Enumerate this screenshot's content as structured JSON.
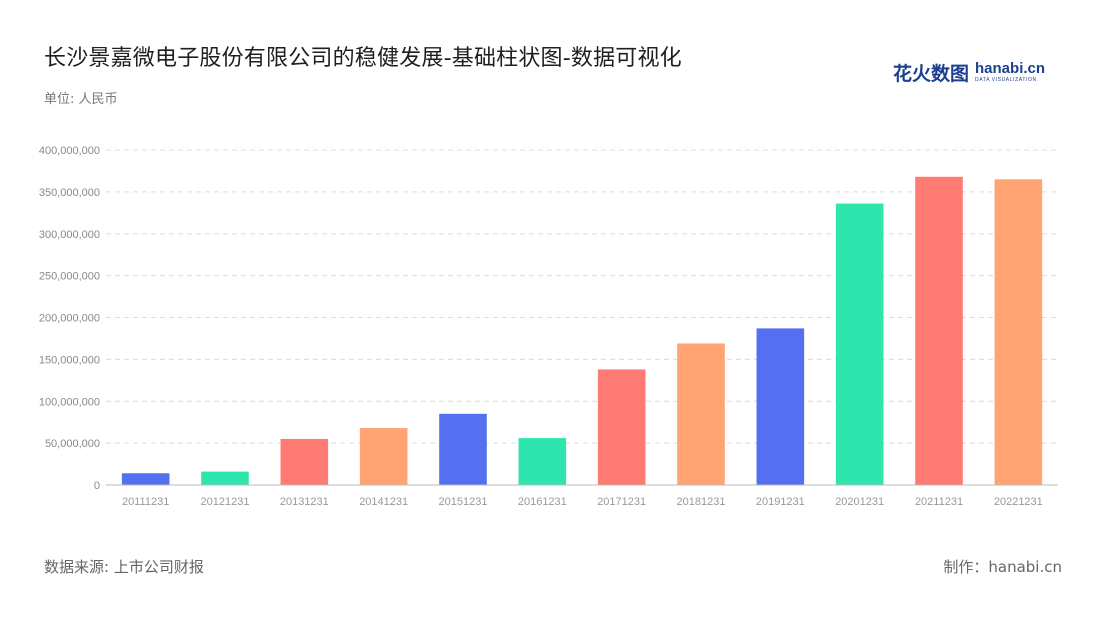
{
  "header": {
    "title": "长沙景嘉微电子股份有限公司的稳健发展-基础柱状图-数据可视化",
    "unit": "单位: 人民币"
  },
  "logo": {
    "cn": "花火数图",
    "en": "hanabi.cn",
    "sub": "DATA VISUALIZATION"
  },
  "footer": {
    "source": "数据来源: 上市公司财报",
    "maker": "制作：hanabi.cn"
  },
  "chart_data": {
    "type": "bar",
    "categories": [
      "20111231",
      "20121231",
      "20131231",
      "20141231",
      "20151231",
      "20161231",
      "20171231",
      "20181231",
      "20191231",
      "20201231",
      "20211231",
      "20221231"
    ],
    "values": [
      14000000,
      16000000,
      55000000,
      68000000,
      85000000,
      56000000,
      138000000,
      169000000,
      187000000,
      336000000,
      368000000,
      365000000
    ],
    "colors": [
      "#5470f0",
      "#2ee6ad",
      "#ff7a73",
      "#ffa472",
      "#5470f0",
      "#2ee6ad",
      "#ff7a73",
      "#ffa472",
      "#5470f0",
      "#2ee6ad",
      "#ff7a73",
      "#ffa472"
    ],
    "ylim": [
      0,
      400000000
    ],
    "yticks": [
      0,
      50000000,
      100000000,
      150000000,
      200000000,
      250000000,
      300000000,
      350000000,
      400000000
    ],
    "ytick_labels": [
      "0",
      "50,000,000",
      "100,000,000",
      "150,000,000",
      "200,000,000",
      "250,000,000",
      "300,000,000",
      "350,000,000",
      "400,000,000"
    ],
    "grid": true,
    "xlabel": "",
    "ylabel": ""
  }
}
